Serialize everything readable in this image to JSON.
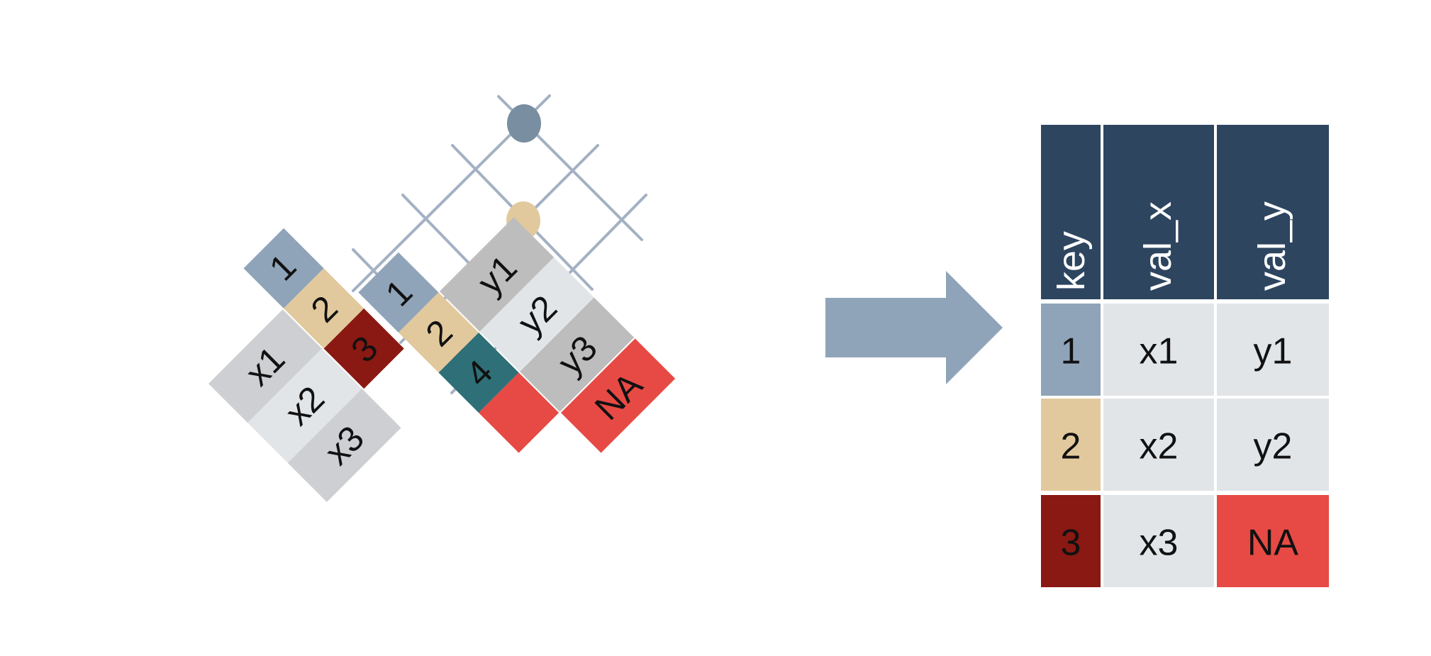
{
  "colors": {
    "key1": "#90A4B9",
    "key2": "#E2C99D",
    "key3": "#891912",
    "key4": "#2F6F77",
    "missing": "#E74A44",
    "value_light": "#E2E5E8",
    "value_mid": "#CDCFD2",
    "value_gray": "#BDBDBD",
    "header": "#2E4560",
    "grid_line": "#A4B1C4",
    "arrow": "#90A4B9",
    "match_key1": "#7A8EA1",
    "match_key2": "#E2C99D",
    "match_unmatched": "#FF0000"
  },
  "left_table": {
    "rows": [
      {
        "key": "1",
        "value": "x1"
      },
      {
        "key": "2",
        "value": "x2"
      },
      {
        "key": "3",
        "value": "x3"
      }
    ]
  },
  "right_table": {
    "rows": [
      {
        "key": "1",
        "value": "y1"
      },
      {
        "key": "2",
        "value": "y2"
      },
      {
        "key": "4",
        "value": "y3"
      }
    ],
    "missing_label": "NA"
  },
  "result_table": {
    "headers": [
      "key",
      "val_x",
      "val_y"
    ],
    "rows": [
      {
        "key": "1",
        "val_x": "x1",
        "val_y": "y1"
      },
      {
        "key": "2",
        "val_x": "x2",
        "val_y": "y2"
      },
      {
        "key": "3",
        "val_x": "x3",
        "val_y": "NA"
      }
    ]
  }
}
